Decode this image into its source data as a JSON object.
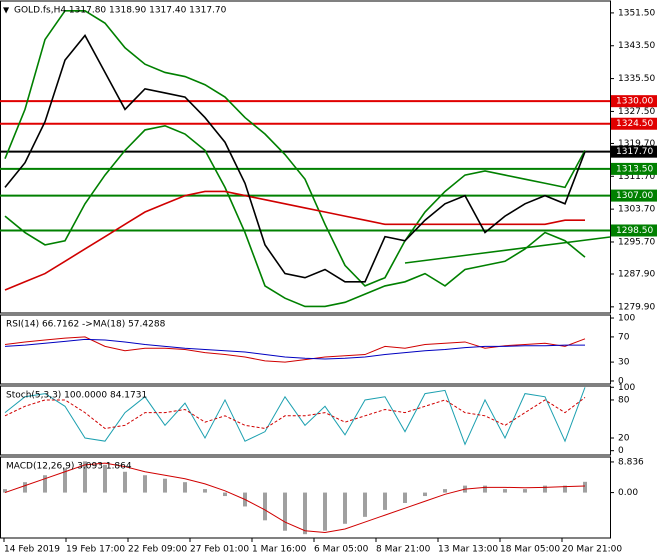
{
  "chart_data": [
    {
      "type": "line",
      "title": "GOLD.fs,H4  1317.80 1318.90 1317.40 1317.70",
      "ylim": [
        1278.4,
        1354.4
      ],
      "yticks": [
        {
          "value": 1351.5,
          "label": "1351.50"
        },
        {
          "value": 1343.5,
          "label": "1343.50"
        },
        {
          "value": 1335.5,
          "label": "1335.50"
        },
        {
          "value": 1327.5,
          "label": "1327.50"
        },
        {
          "value": 1319.7,
          "label": "1319.70"
        },
        {
          "value": 1311.7,
          "label": "1311.70"
        },
        {
          "value": 1303.7,
          "label": "1303.70"
        },
        {
          "value": 1295.7,
          "label": "1295.70"
        },
        {
          "value": 1287.9,
          "label": "1287.90"
        },
        {
          "value": 1279.9,
          "label": "1279.90"
        }
      ],
      "levels": [
        {
          "value": 1330,
          "label": "1330.00",
          "color": "#e00000"
        },
        {
          "value": 1324.5,
          "label": "1324.50",
          "color": "#e00000"
        },
        {
          "value": 1317.7,
          "label": "1317.70",
          "color": "#000000"
        },
        {
          "value": 1313.5,
          "label": "1313.50",
          "color": "#008000"
        },
        {
          "value": 1307,
          "label": "1307.00",
          "color": "#008000"
        },
        {
          "value": 1298.5,
          "label": "1298.50",
          "color": "#008000"
        }
      ],
      "series": [
        {
          "color": "#008000",
          "values": [
            1316,
            1328,
            1345,
            1352,
            1352,
            1349,
            1343,
            1339,
            1337,
            1336,
            1334,
            1331,
            1326,
            1322,
            1317,
            1311,
            1300,
            1290,
            1285,
            1287,
            1296,
            1303,
            1308,
            1312,
            1313,
            1312,
            1311,
            1310,
            1309,
            1318
          ]
        },
        {
          "color": "#008000",
          "values": [
            1302,
            1298,
            1295,
            1296,
            1305,
            1312,
            1318,
            1323,
            1324,
            1322,
            1318,
            1309,
            1298,
            1285,
            1282,
            1280,
            1280,
            1281,
            1283,
            1285,
            1286,
            1288,
            1285,
            1289,
            1290,
            1291,
            1294,
            1298,
            1296,
            1292
          ]
        },
        {
          "color": "#d00000",
          "values": [
            1284,
            1286,
            1288,
            1291,
            1294,
            1297,
            1300,
            1303,
            1305,
            1307,
            1308,
            1308,
            1307,
            1306,
            1305,
            1304,
            1303,
            1302,
            1301,
            1300,
            1300,
            1300,
            1300,
            1300,
            1300,
            1300,
            1300,
            1300,
            1301,
            1301
          ]
        },
        {
          "color": "#000000",
          "values": [
            1309,
            1315,
            1325,
            1340,
            1346,
            1337,
            1328,
            1333,
            1332,
            1331,
            1326,
            1320,
            1310,
            1295,
            1288,
            1287,
            1289,
            1286,
            1286,
            1297,
            1296,
            1301,
            1305,
            1307,
            1298,
            1302,
            1305,
            1307,
            1305,
            1317.7
          ]
        }
      ]
    },
    {
      "type": "line",
      "title": "RSI(14) 66.7162 ->MA(18) 57.4288",
      "ylim": [
        -4.8,
        104.8
      ],
      "yticks": [
        100,
        70,
        30,
        0
      ],
      "series": [
        {
          "color": "#d00000",
          "values": [
            58,
            62,
            65,
            68,
            70,
            55,
            48,
            52,
            52,
            50,
            45,
            42,
            38,
            32,
            30,
            34,
            38,
            40,
            42,
            55,
            52,
            58,
            60,
            62,
            52,
            56,
            58,
            60,
            55,
            67
          ]
        },
        {
          "color": "#0000c0",
          "values": [
            55,
            57,
            60,
            63,
            66,
            65,
            62,
            58,
            55,
            52,
            50,
            48,
            46,
            42,
            38,
            36,
            35,
            36,
            38,
            42,
            45,
            48,
            50,
            53,
            55,
            55,
            56,
            56,
            57,
            57
          ]
        }
      ]
    },
    {
      "type": "line",
      "title": "Stoch(5,3,3) 100.0000 84.1731",
      "ylim": [
        -6.8,
        102
      ],
      "yticks": [
        100,
        80,
        20,
        0
      ],
      "series": [
        {
          "color": "#1ca0b0",
          "values": [
            60,
            85,
            90,
            70,
            20,
            15,
            60,
            85,
            40,
            75,
            20,
            80,
            15,
            30,
            85,
            40,
            70,
            25,
            80,
            85,
            30,
            90,
            95,
            10,
            80,
            20,
            90,
            85,
            15,
            100
          ]
        },
        {
          "color": "#d00000",
          "dash": true,
          "values": [
            55,
            70,
            80,
            80,
            60,
            35,
            40,
            60,
            60,
            65,
            45,
            55,
            40,
            35,
            55,
            55,
            60,
            45,
            55,
            65,
            60,
            70,
            80,
            60,
            55,
            40,
            60,
            80,
            60,
            84
          ]
        }
      ]
    },
    {
      "type": "line",
      "title": "MACD(12,26,9) 3.093 1.864",
      "ylim": [
        -13.1,
        10.26
      ],
      "yticks": [
        {
          "value": 8.836,
          "label": "8.836"
        },
        {
          "value": 0,
          "label": "0.00"
        }
      ],
      "series": [
        {
          "color": "#a0a0a0",
          "style": "bar",
          "values": [
            1,
            3,
            5,
            7,
            9,
            8,
            6,
            5,
            4,
            3,
            1,
            -1,
            -4,
            -8,
            -11,
            -12,
            -11,
            -9,
            -7,
            -5,
            -3,
            -1,
            1,
            2,
            2,
            1,
            1,
            2,
            2,
            3.1
          ]
        },
        {
          "color": "#d00000",
          "values": [
            0,
            2,
            4,
            6,
            8,
            8.5,
            7.5,
            6,
            5,
            4,
            2.5,
            0.5,
            -2,
            -5,
            -8.5,
            -11,
            -11.5,
            -10.5,
            -8.5,
            -6.5,
            -4.5,
            -2.5,
            -0.5,
            1,
            1.5,
            1.5,
            1.4,
            1.5,
            1.7,
            1.9
          ]
        }
      ]
    }
  ],
  "x_axis_labels": [
    "14 Feb 2019",
    "19 Feb 17:00",
    "22 Feb 09:00",
    "27 Feb 01:00",
    "1 Mar 16:00",
    "6 Mar 05:00",
    "8 Mar 21:00",
    "13 Mar 13:00",
    "18 Mar 05:00",
    "20 Mar 21:00"
  ]
}
